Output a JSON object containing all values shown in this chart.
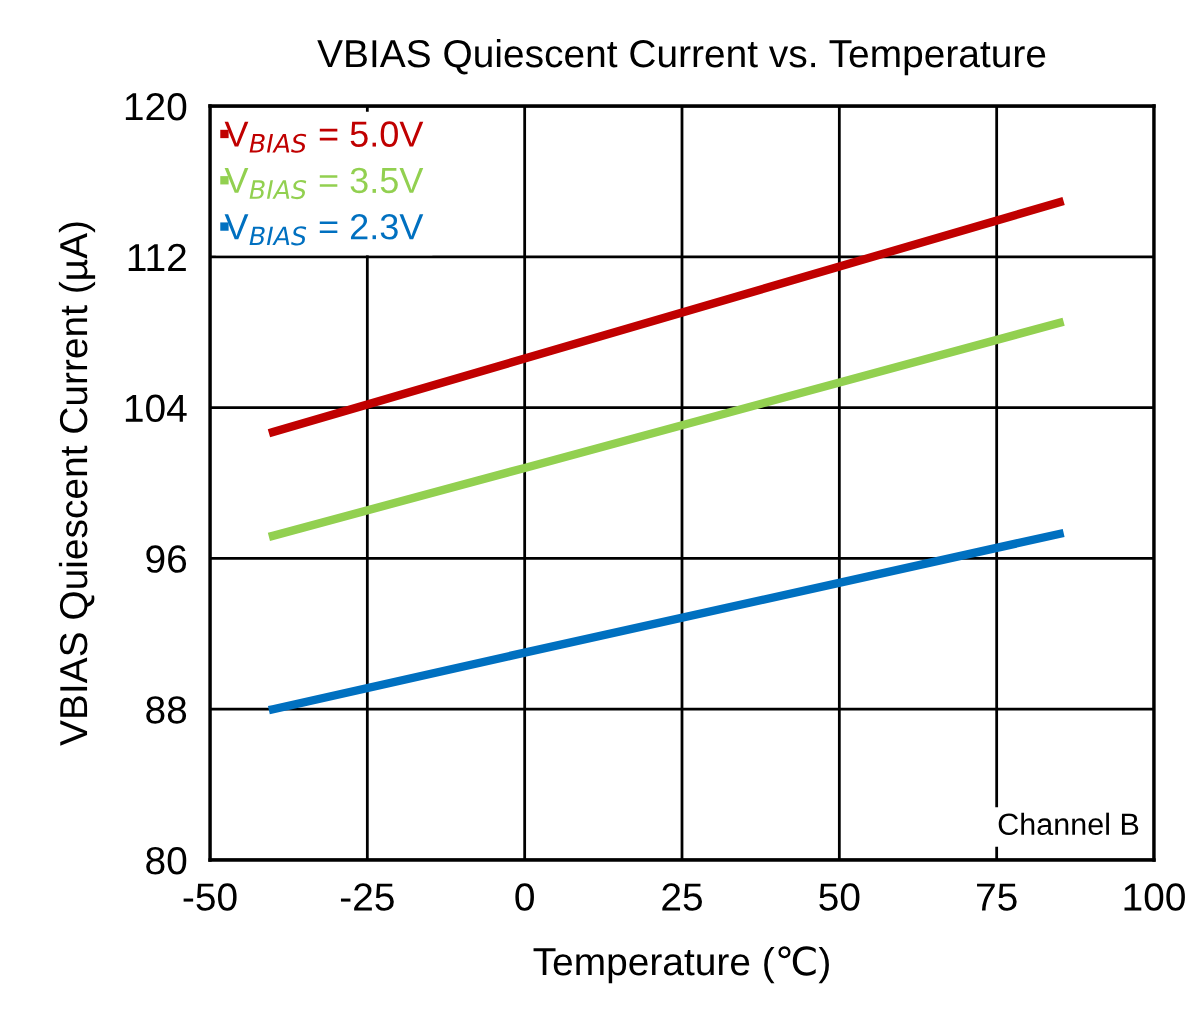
{
  "chart_data": {
    "type": "line",
    "title": "VBIAS Quiescent Current vs. Temperature",
    "xlabel": "Temperature (℃)",
    "ylabel": "VBIAS Quiescent Current (µA)",
    "series": [
      {
        "name": "V$_{BIAS}$ = 5.0V",
        "color": "#c00000",
        "x": [
          -40,
          0,
          85
        ],
        "values": [
          102.7,
          106.6,
          114.9
        ]
      },
      {
        "name": "V$_{BIAS}$ = 3.5V",
        "color": "#92d050",
        "x": [
          -40,
          0,
          85
        ],
        "values": [
          97.2,
          100.8,
          108.5
        ]
      },
      {
        "name": "V$_{BIAS}$ = 2.3V",
        "color": "#0070c0",
        "x": [
          -40,
          0,
          85
        ],
        "values": [
          88.0,
          91.0,
          97.3
        ]
      }
    ],
    "xlim": [
      -50,
      100
    ],
    "xticks": [
      -50,
      -25,
      0,
      25,
      50,
      75,
      100
    ],
    "ylim": [
      80,
      120
    ],
    "yticks": [
      80,
      88,
      96,
      104,
      112,
      120
    ],
    "grid": true,
    "legend": "top left",
    "marker": "none",
    "line_style": "solid",
    "annotations": [
      "Channel B"
    ]
  }
}
